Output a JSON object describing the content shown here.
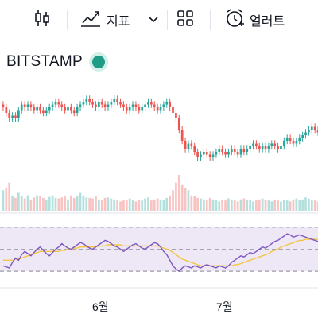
{
  "toolbar": {
    "indicators_label": "지표",
    "alerts_label": "얼러트"
  },
  "symbol": {
    "exchange": "BITSTAMP"
  },
  "colors": {
    "up": "#26a69a",
    "down": "#ef5350",
    "rsi": "#7e57c2",
    "rsi_ma": "#f5c542",
    "rsi_band": "#ede7f6",
    "status": "#1f9c86"
  },
  "chart_data": {
    "type": "candlestick",
    "x_tick_labels": [
      "6월",
      "7월"
    ],
    "price_close": [
      70,
      68,
      66,
      67,
      66,
      69,
      71,
      70,
      71,
      70,
      69,
      70,
      69,
      68,
      69,
      70,
      71,
      72,
      71,
      70,
      69,
      70,
      69,
      68,
      70,
      71,
      72,
      73,
      72,
      71,
      70,
      72,
      71,
      70,
      71,
      72,
      73,
      72,
      71,
      70,
      69,
      70,
      71,
      70,
      69,
      70,
      71,
      72,
      71,
      70,
      69,
      70,
      71,
      72,
      70,
      68,
      66,
      62,
      58,
      55,
      57,
      56,
      54,
      52,
      53,
      54,
      53,
      52,
      53,
      54,
      55,
      54,
      53,
      54,
      55,
      54,
      53,
      55,
      54,
      55,
      56,
      57,
      56,
      55,
      56,
      55,
      56,
      57,
      56,
      55,
      56,
      58,
      59,
      58,
      57,
      58,
      59,
      60,
      61,
      62,
      63,
      62,
      61
    ],
    "volume": [
      40,
      45,
      55,
      30,
      25,
      35,
      28,
      24,
      30,
      22,
      26,
      30,
      28,
      25,
      22,
      27,
      30,
      25,
      24,
      26,
      28,
      22,
      30,
      25,
      28,
      35,
      30,
      26,
      25,
      24,
      28,
      22,
      20,
      25,
      26,
      24,
      22,
      20,
      18,
      20,
      22,
      24,
      20,
      18,
      22,
      20,
      24,
      26,
      20,
      22,
      24,
      22,
      20,
      25,
      30,
      40,
      55,
      70,
      50,
      45,
      40,
      30,
      28,
      25,
      24,
      22,
      20,
      25,
      22,
      20,
      18,
      22,
      20,
      24,
      22,
      20,
      18,
      22,
      24,
      20,
      22,
      18,
      20,
      22,
      24,
      22,
      20,
      18,
      22,
      20,
      18,
      22,
      20,
      18,
      22,
      24,
      20,
      22,
      26,
      24,
      22,
      20,
      18
    ],
    "rsi": [
      35,
      34,
      33,
      38,
      42,
      40,
      45,
      48,
      46,
      44,
      47,
      50,
      52,
      49,
      46,
      44,
      47,
      50,
      52,
      55,
      53,
      51,
      50,
      52,
      54,
      56,
      55,
      53,
      51,
      50,
      52,
      54,
      56,
      58,
      57,
      55,
      53,
      52,
      50,
      48,
      50,
      52,
      54,
      55,
      53,
      51,
      50,
      52,
      54,
      56,
      55,
      52,
      48,
      45,
      40,
      35,
      32,
      30,
      33,
      35,
      34,
      33,
      35,
      34,
      33,
      35,
      36,
      35,
      34,
      33,
      35,
      34,
      33,
      35,
      38,
      40,
      42,
      44,
      43,
      45,
      47,
      46,
      48,
      50,
      52,
      51,
      53,
      55,
      57,
      58,
      60,
      62,
      64,
      63,
      61,
      62,
      63,
      62,
      61,
      60,
      59,
      58,
      57
    ],
    "rsi_ma": [
      40,
      40,
      40,
      40,
      41,
      41,
      42,
      43,
      44,
      45,
      46,
      47,
      48,
      48,
      48,
      48,
      48,
      48,
      48,
      49,
      49,
      50,
      50,
      51,
      51,
      52,
      52,
      52,
      52,
      52,
      52,
      53,
      53,
      53,
      54,
      54,
      54,
      54,
      54,
      53,
      53,
      53,
      53,
      53,
      53,
      53,
      53,
      53,
      53,
      53,
      53,
      52,
      51,
      50,
      49,
      47,
      45,
      43,
      41,
      40,
      39,
      38,
      37,
      36,
      35,
      35,
      35,
      35,
      35,
      35,
      35,
      35,
      35,
      35,
      35,
      36,
      36,
      37,
      38,
      39,
      40,
      41,
      42,
      43,
      44,
      45,
      46,
      48,
      49,
      50,
      52,
      53,
      54,
      55,
      56,
      57,
      58,
      58,
      59,
      59,
      59,
      59,
      59
    ],
    "price_range": [
      40,
      80
    ],
    "rsi_range": [
      20,
      80
    ],
    "rsi_bands": [
      30,
      70
    ]
  }
}
